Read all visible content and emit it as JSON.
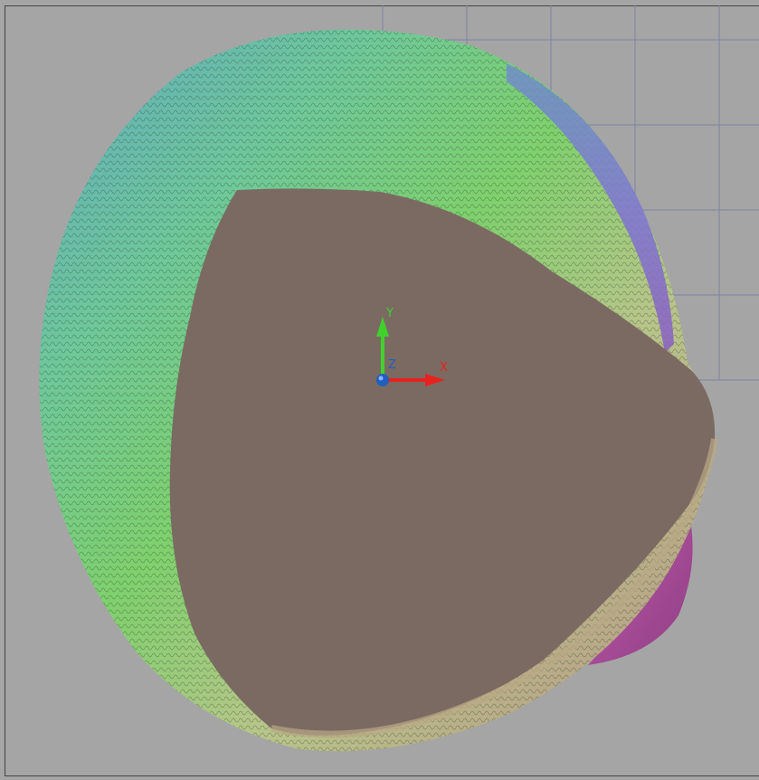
{
  "viewport": {
    "background": "#a5a5a5",
    "grid_color": "#7c84a4",
    "face_color": "#7b6a62",
    "shell_colors": [
      "#5b8fb8",
      "#6fb8a0",
      "#6fcf6a",
      "#9ccf6f",
      "#b6b383",
      "#a88f7f",
      "#b05ba4",
      "#7b7ed0"
    ]
  },
  "ucs": {
    "x_label": "X",
    "y_label": "Y",
    "z_label": "Z",
    "x_color": "#e8211e",
    "y_color": "#3fd22c",
    "z_color": "#1f5fbf"
  }
}
